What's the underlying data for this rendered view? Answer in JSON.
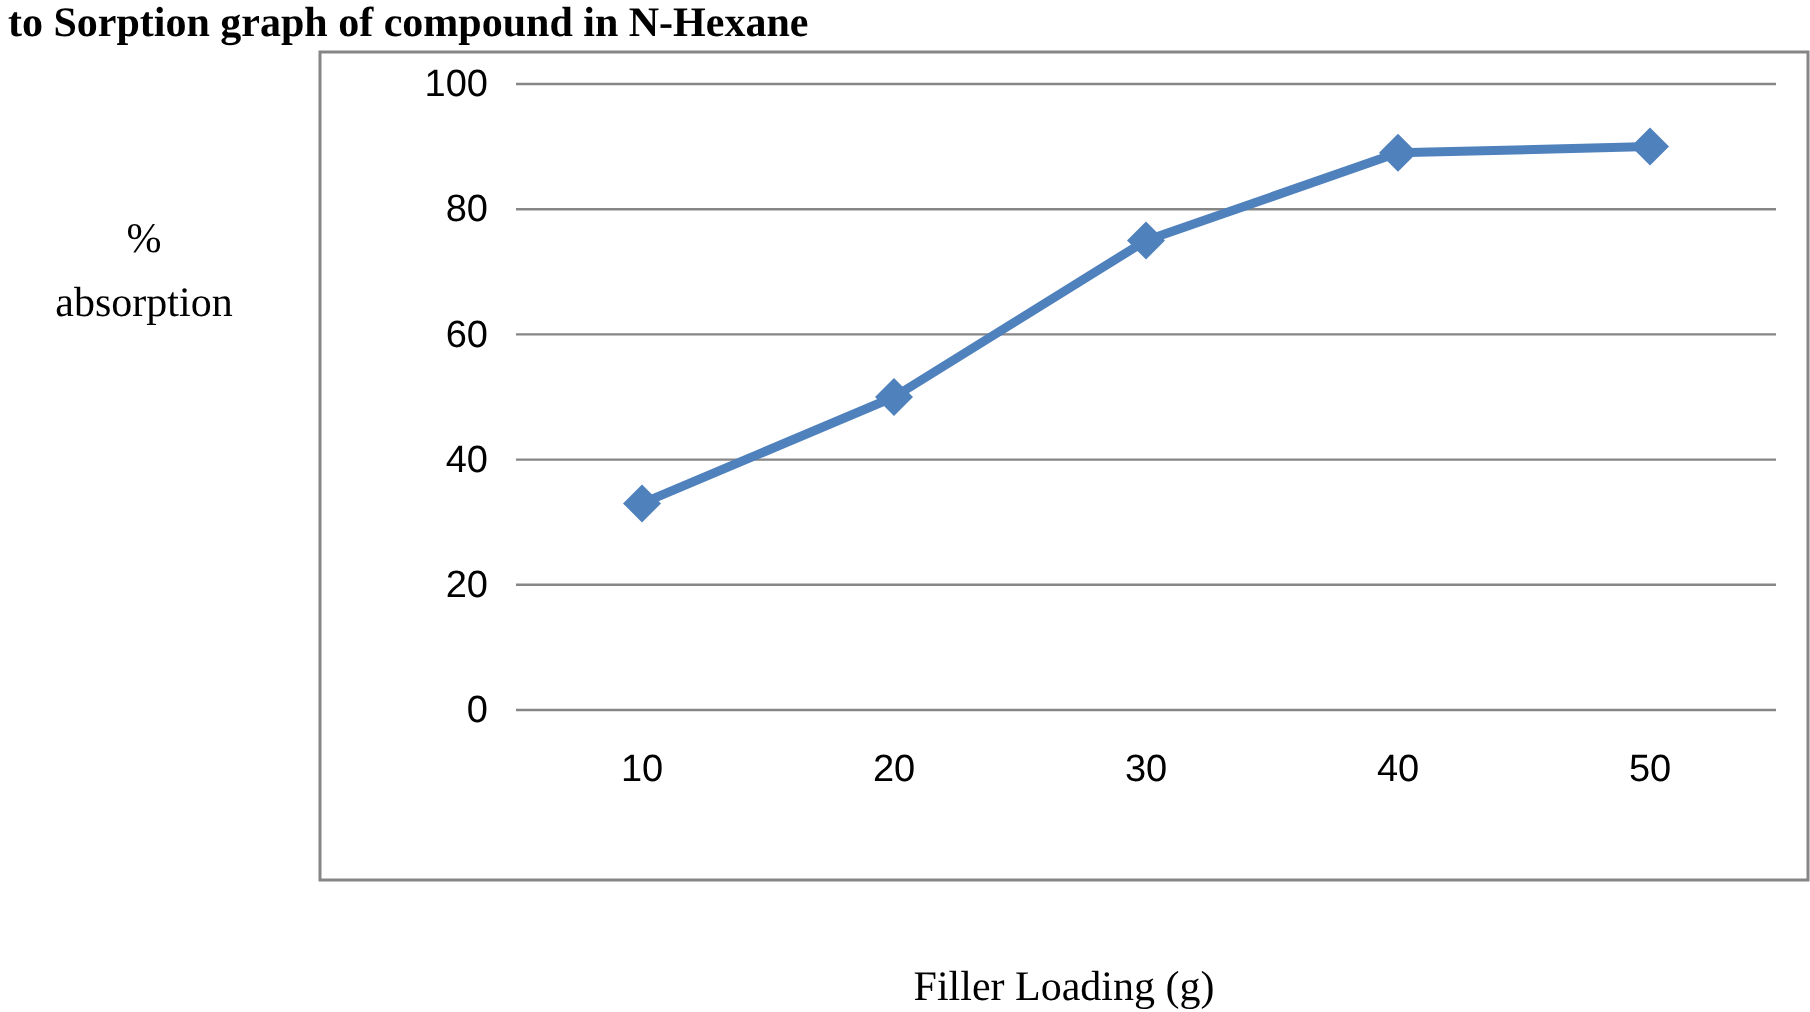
{
  "chart_data": {
    "type": "line",
    "title": "to Sorption graph of compound in N-Hexane",
    "xlabel": "Filler Loading (g)",
    "ylabel": "% absorption",
    "categories": [
      "10",
      "20",
      "30",
      "40",
      "50"
    ],
    "series": [
      {
        "color": "#4f81bd",
        "values": [
          33,
          50,
          75,
          89,
          90
        ]
      }
    ],
    "ylim": [
      0,
      100
    ],
    "yticks": [
      0,
      20,
      40,
      60,
      80,
      100
    ],
    "grid": "y",
    "marker": "diamond",
    "line_style": "solid"
  }
}
